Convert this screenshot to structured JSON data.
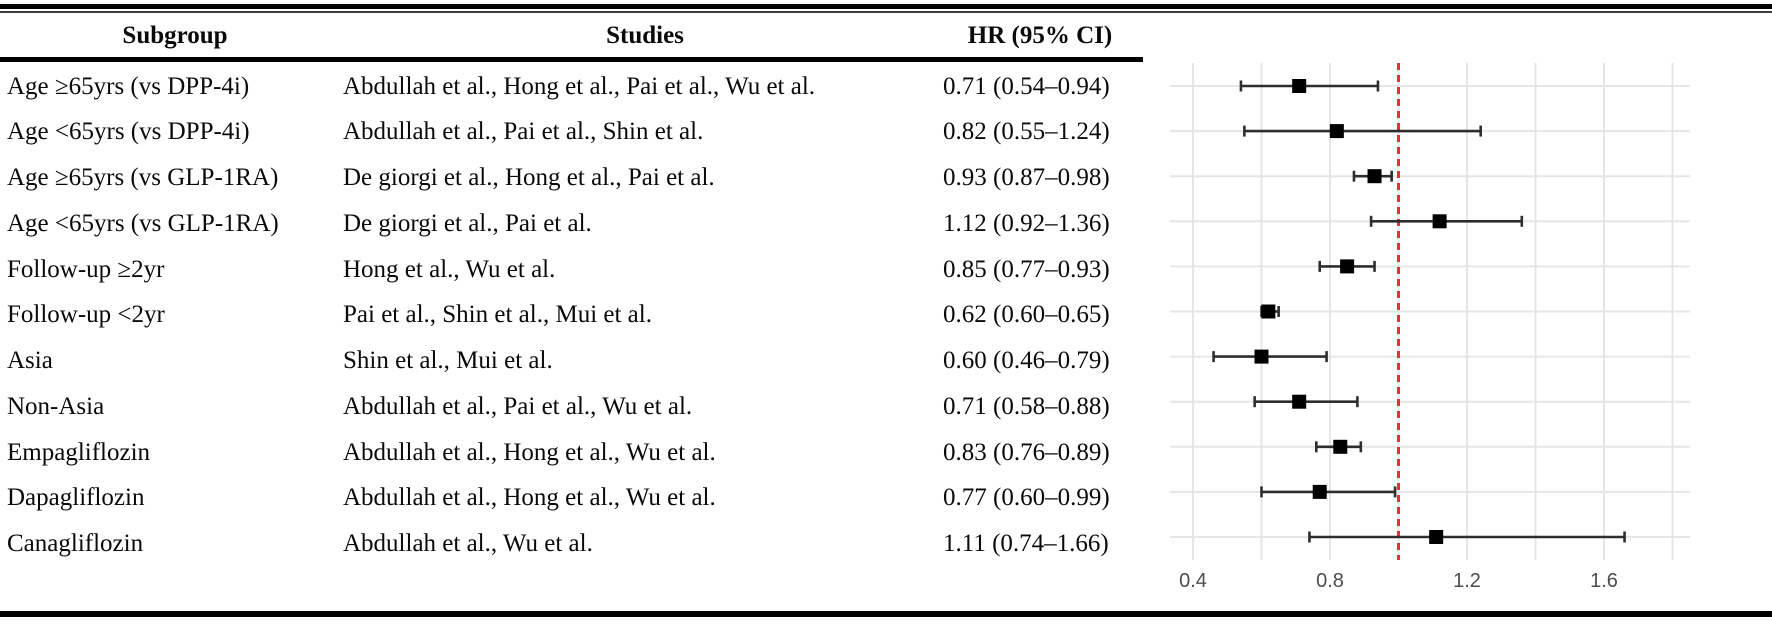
{
  "table": {
    "headers": {
      "subgroup": "Subgroup",
      "studies": "Studies",
      "hr": "HR (95% CI)"
    },
    "rows": [
      {
        "subgroup": "Age ≥65yrs (vs DPP-4i)",
        "studies": "Abdullah et al., Hong et al., Pai et al., Wu et al.",
        "hr_label": "0.71 (0.54–0.94)",
        "hr": 0.71,
        "ci_low": 0.54,
        "ci_high": 0.94
      },
      {
        "subgroup": "Age <65yrs (vs DPP-4i)",
        "studies": "Abdullah et al., Pai et al., Shin et al.",
        "hr_label": "0.82 (0.55–1.24)",
        "hr": 0.82,
        "ci_low": 0.55,
        "ci_high": 1.24
      },
      {
        "subgroup": "Age ≥65yrs (vs GLP-1RA)",
        "studies": "De giorgi et al., Hong et al., Pai et al.",
        "hr_label": "0.93 (0.87–0.98)",
        "hr": 0.93,
        "ci_low": 0.87,
        "ci_high": 0.98
      },
      {
        "subgroup": "Age <65yrs (vs GLP-1RA)",
        "studies": "De giorgi et al., Pai et al.",
        "hr_label": "1.12 (0.92–1.36)",
        "hr": 1.12,
        "ci_low": 0.92,
        "ci_high": 1.36
      },
      {
        "subgroup": "Follow-up ≥2yr",
        "studies": "Hong et al., Wu et al.",
        "hr_label": "0.85 (0.77–0.93)",
        "hr": 0.85,
        "ci_low": 0.77,
        "ci_high": 0.93
      },
      {
        "subgroup": "Follow-up <2yr",
        "studies": "Pai et al., Shin et al., Mui et al.",
        "hr_label": "0.62 (0.60–0.65)",
        "hr": 0.62,
        "ci_low": 0.6,
        "ci_high": 0.65
      },
      {
        "subgroup": "Asia",
        "studies": "Shin et al., Mui et al.",
        "hr_label": "0.60 (0.46–0.79)",
        "hr": 0.6,
        "ci_low": 0.46,
        "ci_high": 0.79
      },
      {
        "subgroup": "Non-Asia",
        "studies": "Abdullah et al., Pai et al., Wu et al.",
        "hr_label": "0.71 (0.58–0.88)",
        "hr": 0.71,
        "ci_low": 0.58,
        "ci_high": 0.88
      },
      {
        "subgroup": "Empagliflozin",
        "studies": "Abdullah et al., Hong et al., Wu et al.",
        "hr_label": "0.83 (0.76–0.89)",
        "hr": 0.83,
        "ci_low": 0.76,
        "ci_high": 0.89
      },
      {
        "subgroup": "Dapagliflozin",
        "studies": "Abdullah et al., Hong et al., Wu et al.",
        "hr_label": "0.77 (0.60–0.99)",
        "hr": 0.77,
        "ci_low": 0.6,
        "ci_high": 0.99
      },
      {
        "subgroup": "Canagliflozin",
        "studies": "Abdullah et al., Wu et al.",
        "hr_label": "1.11 (0.74–1.66)",
        "hr": 1.11,
        "ci_low": 0.74,
        "ci_high": 1.66
      }
    ]
  },
  "chart_data": {
    "type": "scatter",
    "subtype": "forest-plot",
    "categories": [
      "Age ≥65yrs (vs DPP-4i)",
      "Age <65yrs (vs DPP-4i)",
      "Age ≥65yrs (vs GLP-1RA)",
      "Age <65yrs (vs GLP-1RA)",
      "Follow-up ≥2yr",
      "Follow-up <2yr",
      "Asia",
      "Non-Asia",
      "Empagliflozin",
      "Dapagliflozin",
      "Canagliflozin"
    ],
    "hr": [
      0.71,
      0.82,
      0.93,
      1.12,
      0.85,
      0.62,
      0.6,
      0.71,
      0.83,
      0.77,
      1.11
    ],
    "ci_low": [
      0.54,
      0.55,
      0.87,
      0.92,
      0.77,
      0.6,
      0.46,
      0.58,
      0.76,
      0.6,
      0.74
    ],
    "ci_high": [
      0.94,
      1.24,
      0.98,
      1.36,
      0.93,
      0.65,
      0.79,
      0.88,
      0.89,
      0.99,
      1.66
    ],
    "xlabel": "",
    "ylabel": "",
    "xlim": [
      0.33,
      1.85
    ],
    "x_gridlines": [
      0.4,
      0.6,
      0.8,
      1.0,
      1.2,
      1.4,
      1.6,
      1.8
    ],
    "x_tick_labels": [
      "0.4",
      "0.8",
      "1.2",
      "1.6"
    ],
    "x_ticks": [
      0.4,
      0.8,
      1.2,
      1.6
    ],
    "reference_line": 1.0,
    "grid": true,
    "legend": false,
    "colors": {
      "grid": "#e6e6e6",
      "reference_line": "#e0342e",
      "error_bar": "#2e2e2e",
      "marker": "#000000",
      "tick_label": "#4d4d4d",
      "border": "#000000"
    }
  }
}
